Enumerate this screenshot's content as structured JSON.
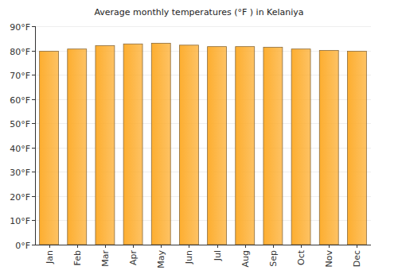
{
  "chart_data": {
    "type": "bar",
    "title": "Average monthly temperatures (°F ) in Kelaniya",
    "categories": [
      "Jan",
      "Feb",
      "Mar",
      "Apr",
      "May",
      "Jun",
      "Jul",
      "Aug",
      "Sep",
      "Oct",
      "Nov",
      "Dec"
    ],
    "values": [
      79.7,
      80.6,
      82,
      82.7,
      83,
      82.2,
      81.6,
      81.6,
      81.3,
      80.6,
      80,
      79.7
    ],
    "color": "#fdae30",
    "ylim": [
      0,
      90
    ],
    "yticks": [
      {
        "value": 0,
        "label": "0°F"
      },
      {
        "value": 10,
        "label": "10°F"
      },
      {
        "value": 20,
        "label": "20°F"
      },
      {
        "value": 30,
        "label": "30°F"
      },
      {
        "value": 40,
        "label": "40°F"
      },
      {
        "value": 50,
        "label": "50°F"
      },
      {
        "value": 60,
        "label": "60°F"
      },
      {
        "value": 70,
        "label": "70°F"
      },
      {
        "value": 80,
        "label": "80°F"
      },
      {
        "value": 90,
        "label": "90°F"
      }
    ],
    "grid": true
  }
}
